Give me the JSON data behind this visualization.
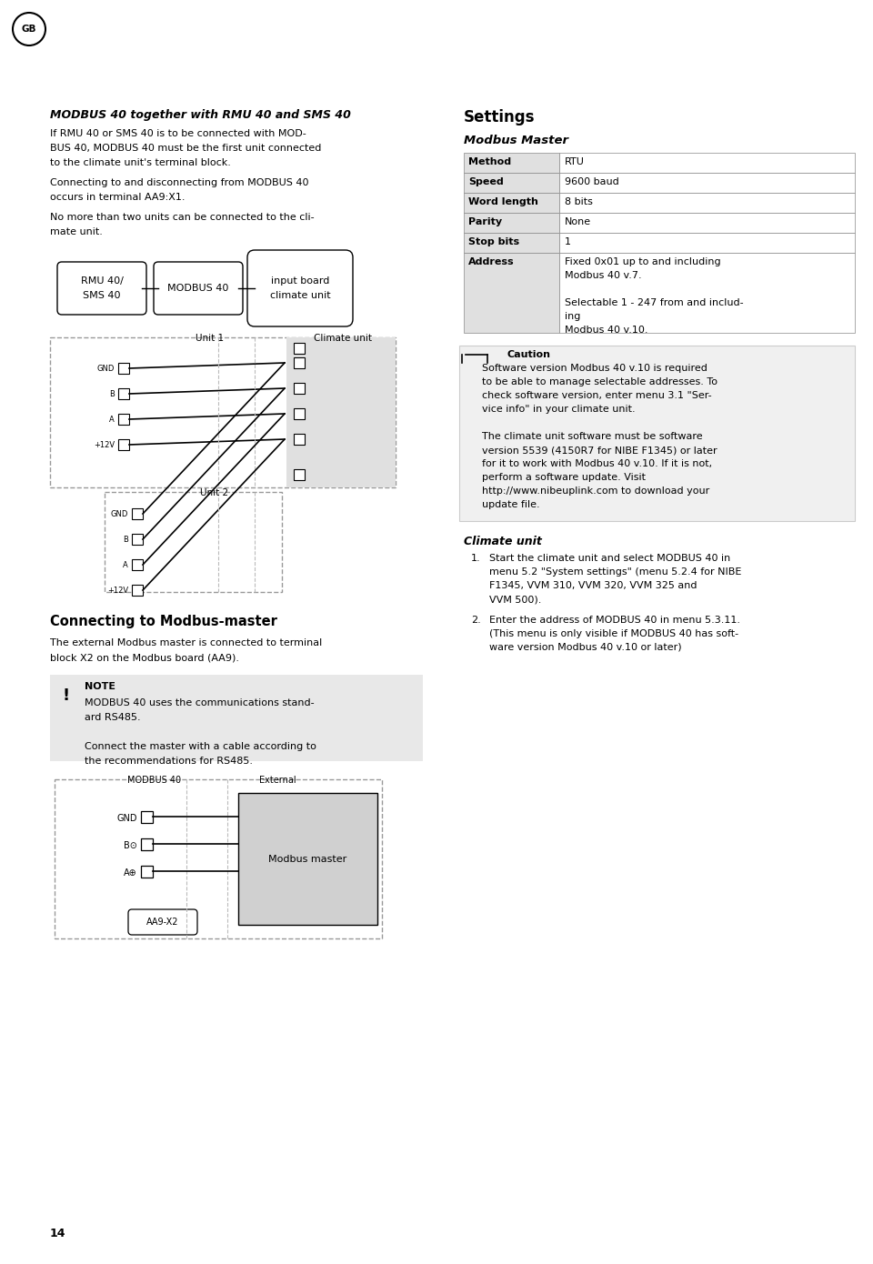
{
  "bg_color": "#ffffff",
  "page_num": "14",
  "title1": "MODBUS 40 together with RMU 40 and SMS 40",
  "body1_lines": [
    "If RMU 40 or SMS 40 is to be connected with MOD-",
    "BUS 40, MODBUS 40 must be the first unit connected",
    "to the climate unit's terminal block."
  ],
  "body2_lines": [
    "Connecting to and disconnecting from MODBUS 40",
    "occurs in terminal AA9:X1."
  ],
  "body3_lines": [
    "No more than two units can be connected to the cli-",
    "mate unit."
  ],
  "terminal_labels": [
    "GND",
    "B",
    "A",
    "+12V"
  ],
  "section2_title": "Connecting to Modbus-master",
  "section2_body_lines": [
    "The external Modbus master is connected to terminal",
    "block X2 on the Modbus board (AA9)."
  ],
  "note_title": "NOTE",
  "note_body_lines": [
    "MODBUS 40 uses the communications stand-",
    "ard RS485.",
    "",
    "Connect the master with a cable according to",
    "the recommendations for RS485."
  ],
  "diagram2_terminal_labels": [
    "GND",
    "B⊙",
    "A⊕"
  ],
  "diagram2_master_label": "Modbus master",
  "diagram2_bottom_label": "AA9-X2",
  "right_title": "Settings",
  "right_subtitle": "Modbus Master",
  "table_rows": [
    [
      "Method",
      "RTU"
    ],
    [
      "Speed",
      "9600 baud"
    ],
    [
      "Word length",
      "8 bits"
    ],
    [
      "Parity",
      "None"
    ],
    [
      "Stop bits",
      "1"
    ],
    [
      "Address",
      "Fixed 0x01 up to and including\nModbus 40 v.7.\n\nSelectable 1 - 247 from and includ-\ning\nModbus 40 v.10."
    ]
  ],
  "caution_title": "Caution",
  "caution_body_lines": [
    "Software version Modbus 40 v.10 is required",
    "to be able to manage selectable addresses. To",
    "check software version, enter menu 3.1 \"Ser-",
    "vice info\" in your climate unit.",
    "",
    "The climate unit software must be software",
    "version 5539 (4150R7 for NIBE F1345) or later",
    "for it to work with Modbus 40 v.10. If it is not,",
    "perform a software update. Visit",
    "http://www.nibeuplink.com to download your",
    "update file."
  ],
  "right_subtitle2": "Climate unit",
  "climate_step1_lines": [
    "Start the climate unit and select MODBUS 40 in",
    "menu 5.2 \"System settings\" (menu 5.2.4 for NIBE",
    "F1345, VVM 310, VVM 320, VVM 325 and",
    "VVM 500)."
  ],
  "climate_step2_lines": [
    "Enter the address of MODBUS 40 in menu 5.3.11.",
    "(This menu is only visible if MODBUS 40 has soft-",
    "ware version Modbus 40 v.10 or later)"
  ]
}
